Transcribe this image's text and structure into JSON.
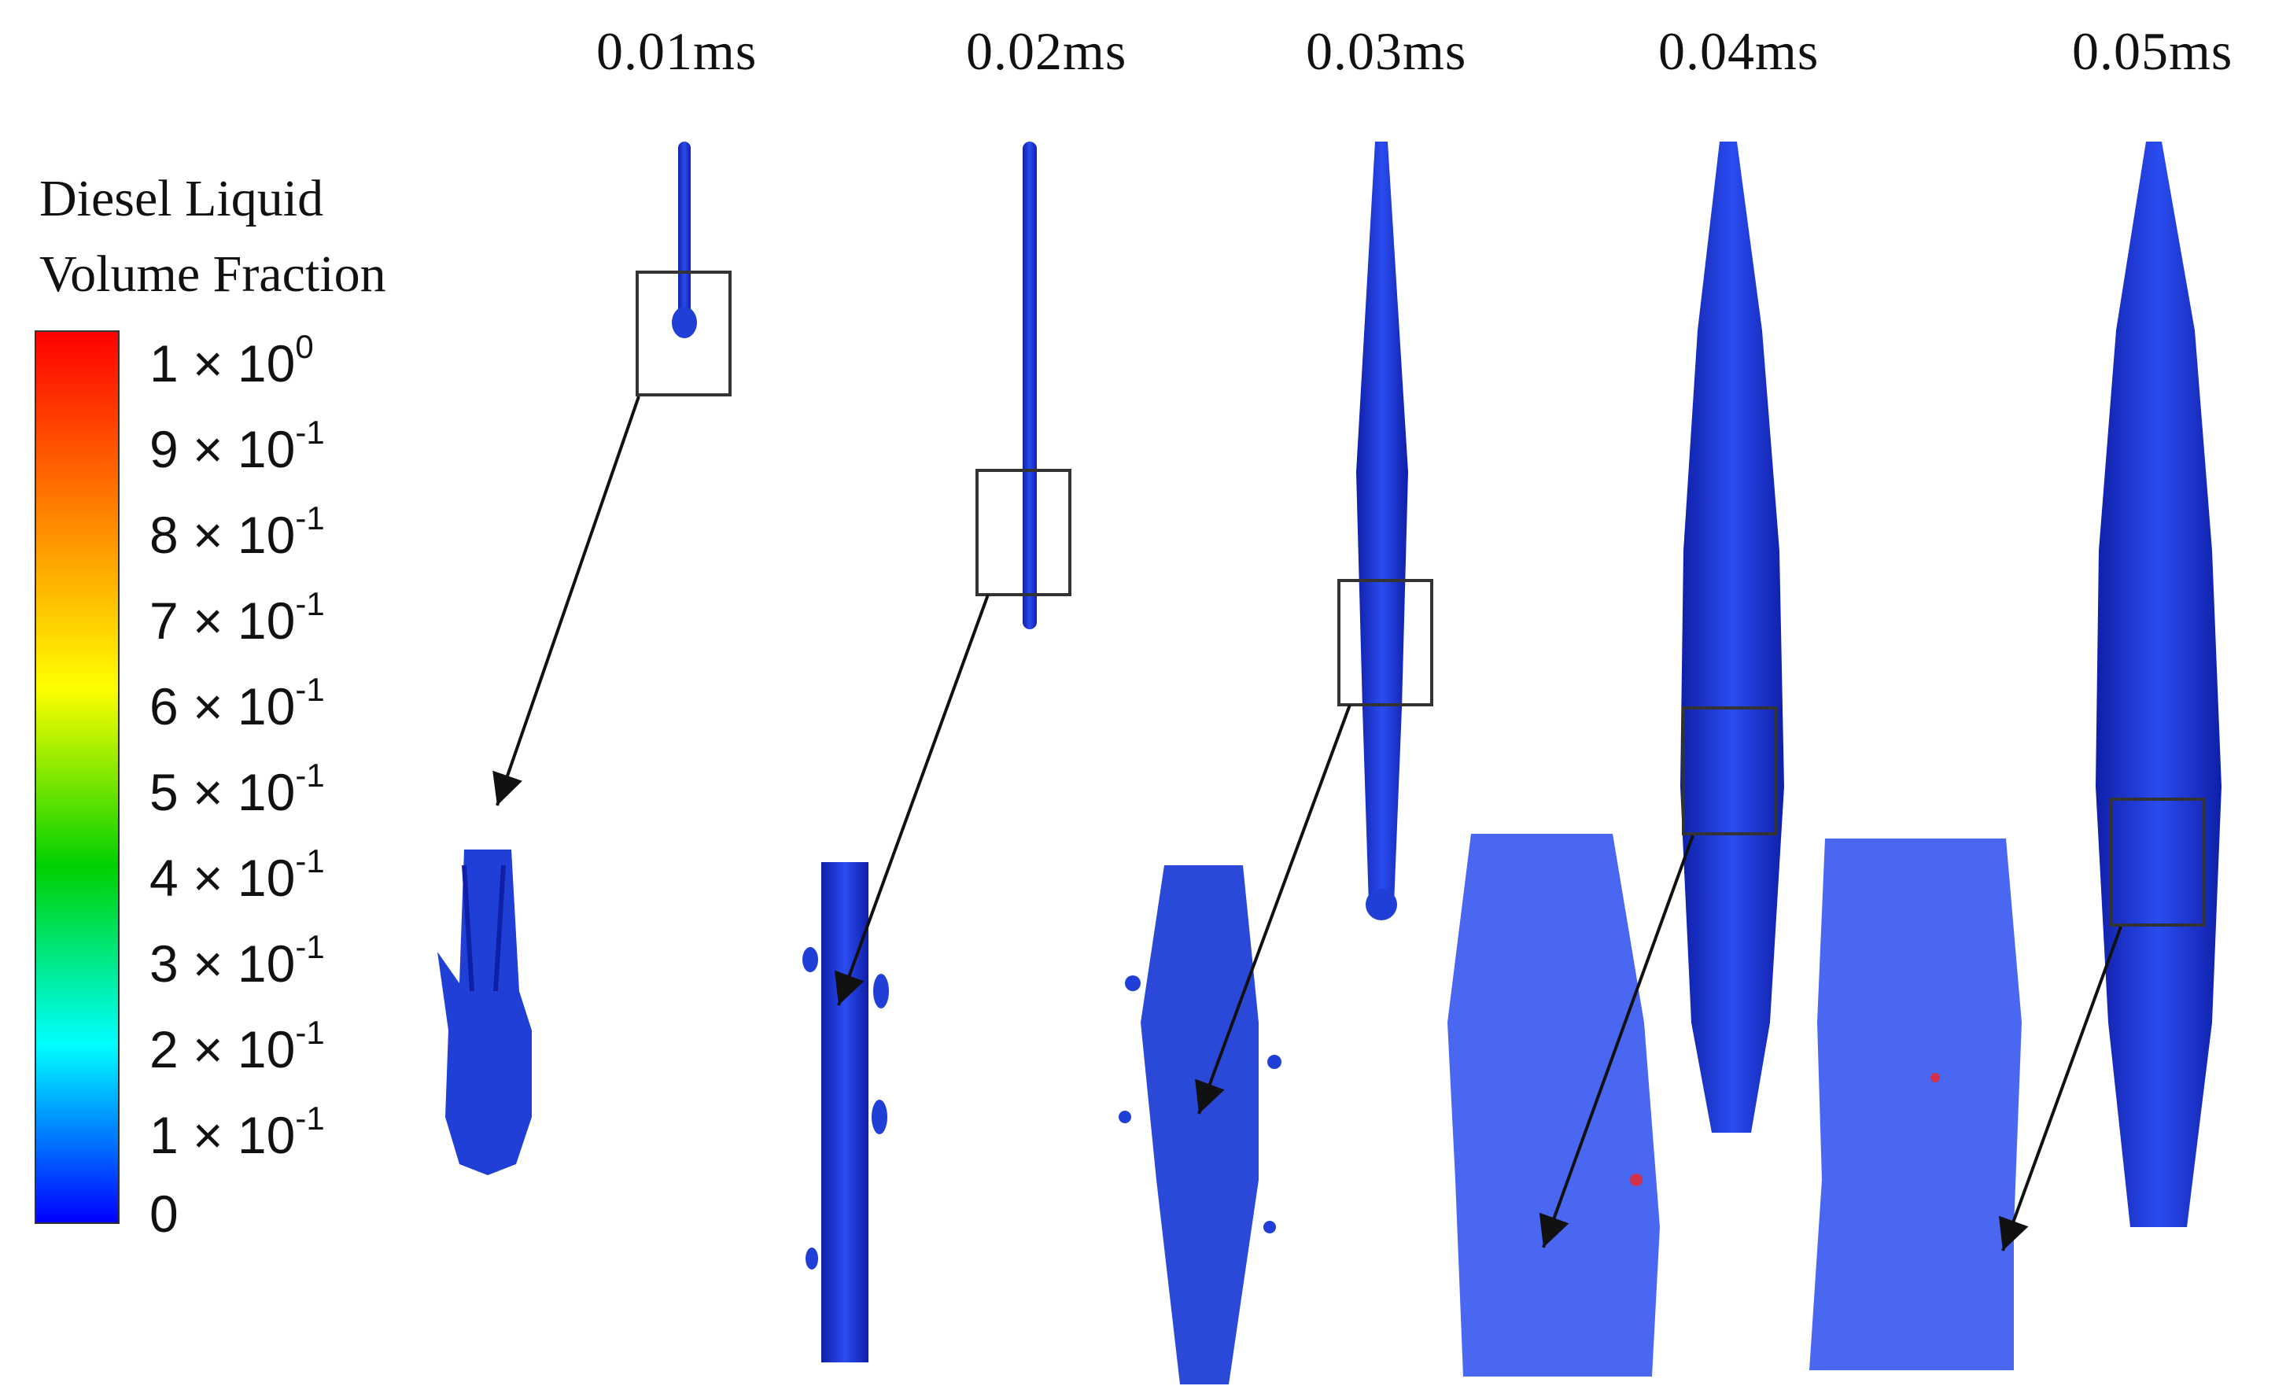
{
  "time_labels": [
    "0.01ms",
    "0.02ms",
    "0.03ms",
    "0.04ms",
    "0.05ms"
  ],
  "legend": {
    "title_line1": "Diesel Liquid",
    "title_line2": "Volume Fraction",
    "colors": [
      "#ff0000",
      "#ff8000",
      "#ffff00",
      "#00d000",
      "#00ffff",
      "#0000ff"
    ],
    "ticks": [
      {
        "mantissa": "1 × 10",
        "exponent": "0"
      },
      {
        "mantissa": "9 × 10",
        "exponent": "-1"
      },
      {
        "mantissa": "8 × 10",
        "exponent": "-1"
      },
      {
        "mantissa": "7 × 10",
        "exponent": "-1"
      },
      {
        "mantissa": "6 × 10",
        "exponent": "-1"
      },
      {
        "mantissa": "5 × 10",
        "exponent": "-1"
      },
      {
        "mantissa": "4 × 10",
        "exponent": "-1"
      },
      {
        "mantissa": "3 × 10",
        "exponent": "-1"
      },
      {
        "mantissa": "2 × 10",
        "exponent": "-1"
      },
      {
        "mantissa": "1 × 10",
        "exponent": "-1"
      },
      {
        "mantissa": "0",
        "exponent": ""
      }
    ]
  },
  "colors": {
    "spray": "#1f3fd6",
    "spray_dark": "#0f1fa8",
    "droplet_hot": "#d0304a",
    "droplet_cool": "#3cc8ff",
    "frame": "#333333"
  }
}
